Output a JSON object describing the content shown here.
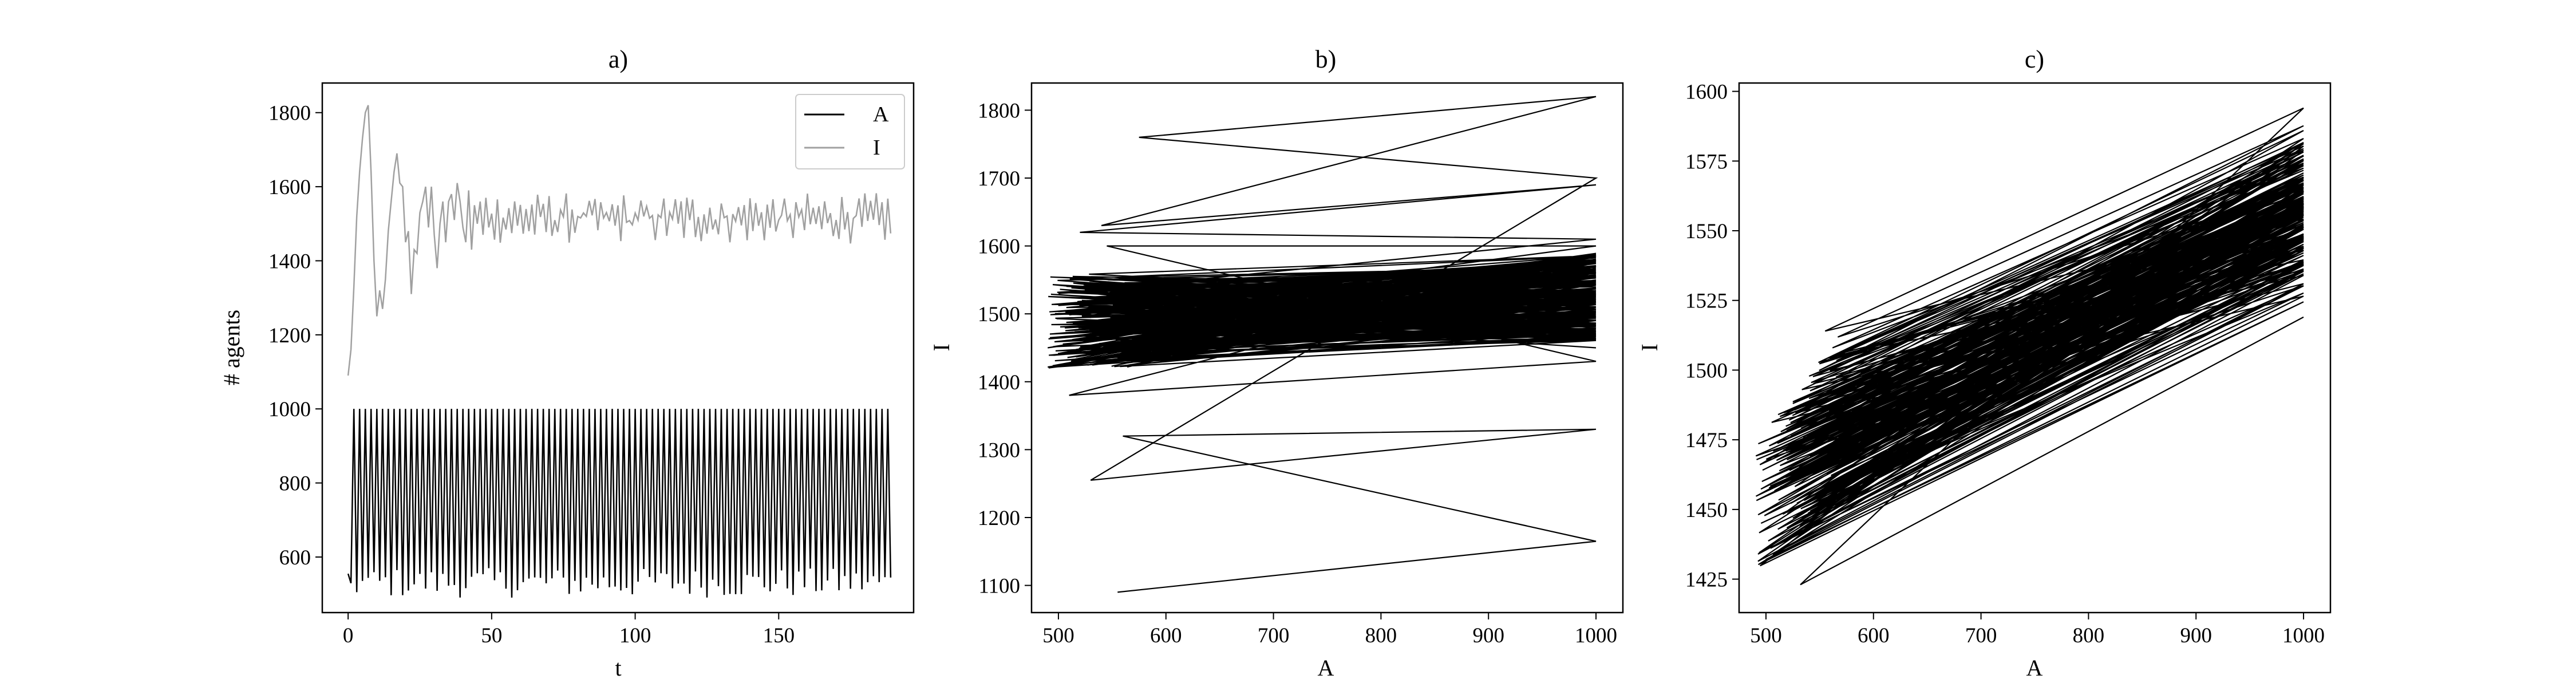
{
  "chart_data": [
    {
      "panel": "a",
      "type": "line",
      "title": "a)",
      "xlabel": "t",
      "ylabel": "# agents",
      "xlim": [
        -9,
        197
      ],
      "ylim": [
        450,
        1880
      ],
      "xticks": [
        0,
        50,
        100,
        150
      ],
      "yticks": [
        600,
        800,
        1000,
        1200,
        1400,
        1600,
        1800
      ],
      "legend_position": "upper-right",
      "series": [
        {
          "name": "A",
          "color": "#000000",
          "pattern": "oscillation",
          "x_start": 0,
          "x_end": 189,
          "x_step": 1,
          "high": 1000,
          "low_min": 490,
          "low_max": 570,
          "period": 2,
          "description": "alternates between 1000 and ~500-570"
        },
        {
          "name": "I",
          "color": "#a0a0a0",
          "x_start": 0,
          "x_end": 189,
          "initial": [
            [
              0,
              1090
            ],
            [
              1,
              1160
            ],
            [
              2,
              1330
            ],
            [
              3,
              1520
            ],
            [
              4,
              1640
            ],
            [
              5,
              1730
            ],
            [
              6,
              1800
            ],
            [
              7,
              1820
            ],
            [
              8,
              1640
            ],
            [
              9,
              1400
            ],
            [
              10,
              1250
            ],
            [
              11,
              1320
            ],
            [
              12,
              1270
            ],
            [
              13,
              1350
            ],
            [
              14,
              1480
            ],
            [
              15,
              1560
            ],
            [
              16,
              1640
            ],
            [
              17,
              1690
            ],
            [
              18,
              1610
            ],
            [
              19,
              1600
            ],
            [
              20,
              1450
            ],
            [
              21,
              1480
            ],
            [
              22,
              1310
            ],
            [
              23,
              1430
            ],
            [
              24,
              1420
            ],
            [
              25,
              1530
            ],
            [
              26,
              1560
            ],
            [
              27,
              1600
            ],
            [
              28,
              1490
            ],
            [
              29,
              1600
            ],
            [
              30,
              1470
            ],
            [
              31,
              1380
            ],
            [
              32,
              1500
            ],
            [
              33,
              1560
            ],
            [
              34,
              1450
            ],
            [
              35,
              1560
            ],
            [
              36,
              1580
            ],
            [
              37,
              1510
            ],
            [
              38,
              1610
            ],
            [
              39,
              1560
            ],
            [
              40,
              1490
            ],
            [
              41,
              1450
            ],
            [
              42,
              1590
            ],
            [
              43,
              1430
            ],
            [
              44,
              1550
            ],
            [
              45,
              1500
            ],
            [
              46,
              1560
            ],
            [
              47,
              1470
            ],
            [
              48,
              1570
            ],
            [
              49,
              1490
            ]
          ],
          "steady_state_mean": 1515,
          "steady_state_amplitude": 55
        }
      ]
    },
    {
      "panel": "b",
      "type": "line",
      "title": "b)",
      "xlabel": "A",
      "ylabel": "I",
      "xlim": [
        475,
        1025
      ],
      "ylim": [
        1060,
        1840
      ],
      "xticks": [
        500,
        600,
        700,
        800,
        900,
        1000
      ],
      "yticks": [
        1100,
        1200,
        1300,
        1400,
        1500,
        1600,
        1700,
        1800
      ],
      "series": [
        {
          "name": "",
          "color": "#000000",
          "description": "phase trajectory A vs I, alternating between A≈1000 and A≈500-570",
          "key_points": [
            [
              555,
              1090
            ],
            [
              1000,
              1165
            ],
            [
              560,
              1320
            ],
            [
              1000,
              1330
            ],
            [
              530,
              1255
            ],
            [
              1000,
              1700
            ],
            [
              575,
              1760
            ],
            [
              1000,
              1820
            ],
            [
              540,
              1630
            ],
            [
              1000,
              1690
            ],
            [
              520,
              1620
            ],
            [
              1000,
              1610
            ],
            [
              500,
              1530
            ],
            [
              1000,
              1580
            ],
            [
              490,
              1450
            ],
            [
              1000,
              1560
            ]
          ],
          "cloud_a_low": [
            490,
            570
          ],
          "cloud_i_range": [
            1380,
            1620
          ],
          "cloud_a_high": 1000,
          "cloud_i_high_range": [
            1430,
            1610
          ]
        }
      ]
    },
    {
      "panel": "c",
      "type": "line",
      "title": "c)",
      "xlabel": "A",
      "ylabel": "I",
      "xlim": [
        475,
        1025
      ],
      "ylim": [
        1413,
        1603
      ],
      "xticks": [
        500,
        600,
        700,
        800,
        900,
        1000
      ],
      "yticks": [
        1425,
        1450,
        1475,
        1500,
        1525,
        1550,
        1575,
        1600
      ],
      "series": [
        {
          "name": "",
          "color": "#000000",
          "description": "steady-state phase trajectory: A low (490-570) with I 1423-1515, A=1000 with I 1519-1594",
          "a_low_range": [
            490,
            570
          ],
          "i_low_range": [
            1423,
            1515
          ],
          "i_high_range": [
            1519,
            1594
          ]
        }
      ]
    }
  ]
}
